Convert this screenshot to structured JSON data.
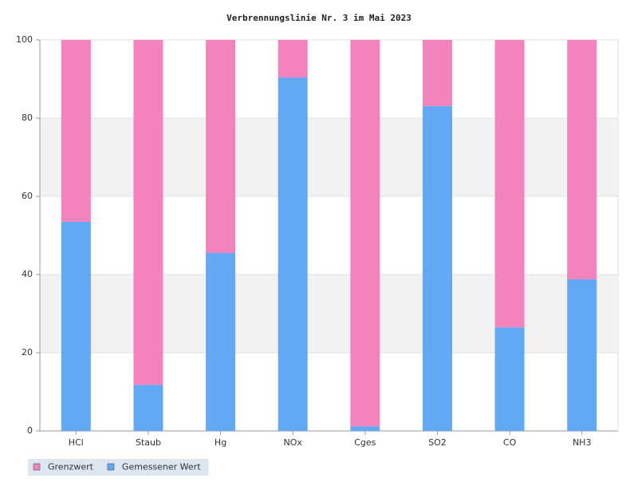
{
  "chart_data": {
    "type": "stacked-bar",
    "title": "Verbrennungslinie Nr. 3 im Mai 2023",
    "categories": [
      "HCl",
      "Staub",
      "Hg",
      "NOx",
      "Cges",
      "SO2",
      "CO",
      "NH3"
    ],
    "series": [
      {
        "name": "Grenzwert",
        "color": "#f383bd",
        "values": [
          46.5,
          88.2,
          54.5,
          9.6,
          98.8,
          16.9,
          73.5,
          61.2
        ]
      },
      {
        "name": "Gemessener Wert",
        "color": "#63a8f3",
        "values": [
          53.5,
          11.8,
          45.5,
          90.4,
          1.2,
          83.1,
          26.5,
          38.8
        ]
      }
    ],
    "ylim": [
      0,
      100
    ],
    "yticks": [
      0,
      20,
      40,
      60,
      80,
      100
    ],
    "grid": true,
    "legend": "bottom-left"
  }
}
